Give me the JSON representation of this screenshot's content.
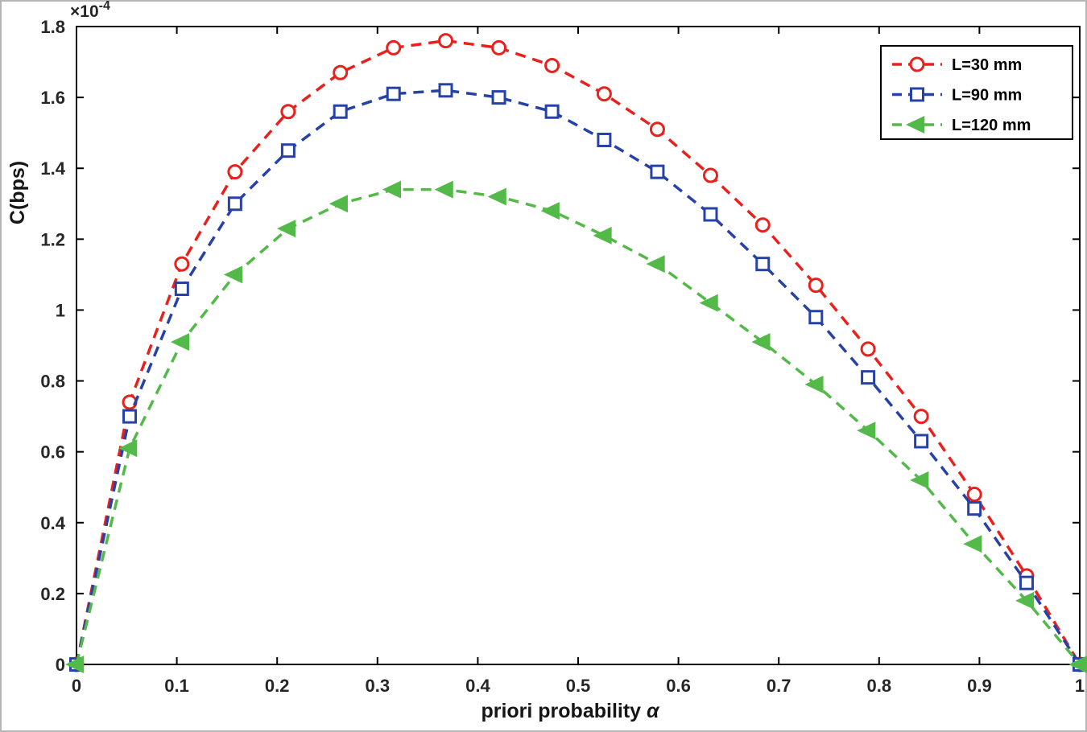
{
  "figure": {
    "background": "#ffffff",
    "frame_color": "#b5b5b5"
  },
  "chart_data": {
    "type": "line",
    "title": "",
    "xlabel": "priori probability",
    "xlabel_symbol": "α",
    "ylabel": "C(bps)",
    "y_multiplier_base": "×10",
    "y_multiplier_exp": "-4",
    "xlim": [
      0,
      1
    ],
    "ylim": [
      0,
      1.8
    ],
    "grid": false,
    "legend_position": "top-right",
    "axis_color": "#000000",
    "tick_label_color": "#262626",
    "line_style": "dashed",
    "xticks": [
      0,
      0.1,
      0.2,
      0.3,
      0.4,
      0.5,
      0.6,
      0.7,
      0.8,
      0.9,
      1
    ],
    "xtick_labels": [
      "0",
      "0.1",
      "0.2",
      "0.3",
      "0.4",
      "0.5",
      "0.6",
      "0.7",
      "0.8",
      "0.9",
      "1"
    ],
    "yticks": [
      0,
      0.2,
      0.4,
      0.6,
      0.8,
      1,
      1.2,
      1.4,
      1.6,
      1.8
    ],
    "ytick_labels": [
      "0",
      "0.2",
      "0.4",
      "0.6",
      "0.8",
      "1",
      "1.2",
      "1.4",
      "1.6",
      "1.8"
    ],
    "x": [
      0,
      0.053,
      0.105,
      0.158,
      0.211,
      0.263,
      0.316,
      0.368,
      0.421,
      0.474,
      0.526,
      0.579,
      0.632,
      0.684,
      0.737,
      0.789,
      0.842,
      0.895,
      0.947,
      1.0
    ],
    "series": [
      {
        "name": "L=30 mm",
        "color": "#e9211d",
        "marker": "circle",
        "marker_fill": "hollow",
        "values": [
          0,
          0.74,
          1.13,
          1.39,
          1.56,
          1.67,
          1.74,
          1.76,
          1.74,
          1.69,
          1.61,
          1.51,
          1.38,
          1.24,
          1.07,
          0.89,
          0.7,
          0.48,
          0.25,
          0
        ]
      },
      {
        "name": "L=90 mm",
        "color": "#2742a6",
        "marker": "square",
        "marker_fill": "hollow",
        "values": [
          0,
          0.7,
          1.06,
          1.3,
          1.45,
          1.56,
          1.61,
          1.62,
          1.6,
          1.56,
          1.48,
          1.39,
          1.27,
          1.13,
          0.98,
          0.81,
          0.63,
          0.44,
          0.23,
          0
        ]
      },
      {
        "name": "L=120 mm",
        "color": "#53b948",
        "marker": "triangle-left",
        "marker_fill": "solid",
        "values": [
          0,
          0.61,
          0.91,
          1.1,
          1.23,
          1.3,
          1.34,
          1.34,
          1.32,
          1.28,
          1.21,
          1.13,
          1.02,
          0.91,
          0.79,
          0.66,
          0.52,
          0.34,
          0.18,
          0
        ]
      }
    ]
  }
}
